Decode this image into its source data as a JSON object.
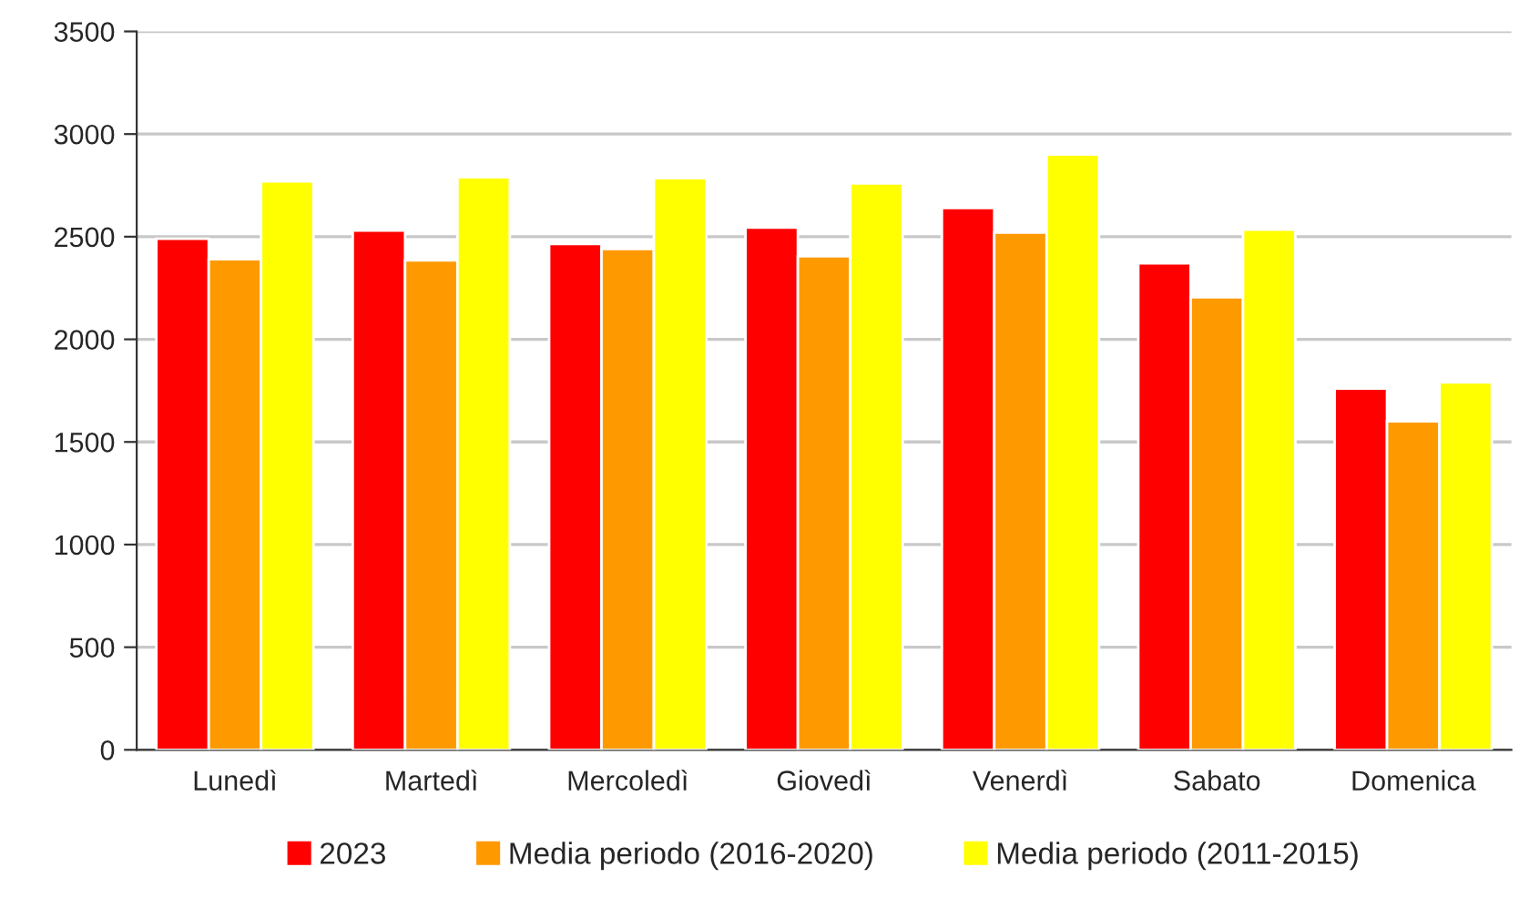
{
  "chart_data": {
    "type": "bar",
    "categories": [
      "Lunedì",
      "Martedì",
      "Mercoledì",
      "Giovedì",
      "Venerdì",
      "Sabato",
      "Domenica"
    ],
    "series": [
      {
        "name": "2023",
        "color": "#ff0000",
        "values": [
          2490,
          2530,
          2465,
          2545,
          2640,
          2370,
          1760
        ]
      },
      {
        "name": "Media periodo (2016-2020)",
        "color": "#ff9900",
        "values": [
          2390,
          2385,
          2440,
          2405,
          2520,
          2205,
          1600
        ]
      },
      {
        "name": "Media periodo (2011-2015)",
        "color": "#ffff00",
        "values": [
          2770,
          2790,
          2785,
          2760,
          2900,
          2535,
          1790
        ]
      }
    ],
    "ylim": [
      0,
      3500
    ],
    "yticks": [
      0,
      500,
      1000,
      1500,
      2000,
      2500,
      3000,
      3500
    ],
    "grid": "y",
    "legend": "bottom"
  }
}
